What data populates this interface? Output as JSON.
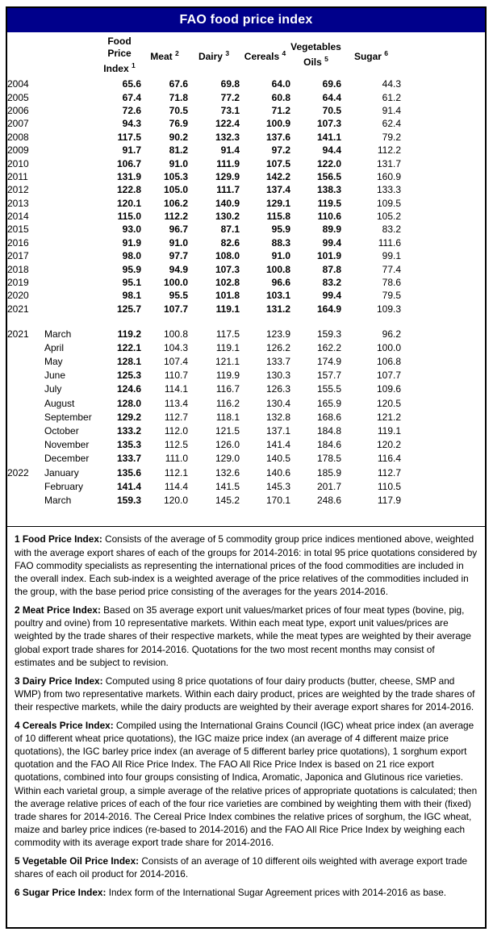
{
  "title": "FAO food price index",
  "colors": {
    "header_bg": "#00008B",
    "header_text": "#FFFFFF",
    "border": "#000000",
    "text": "#000000"
  },
  "table": {
    "columns": [
      {
        "id": "food-price-index",
        "line1": "Food Price",
        "word": "Index",
        "sup": "1"
      },
      {
        "id": "meat",
        "line1": "",
        "word": "Meat",
        "sup": "2"
      },
      {
        "id": "dairy",
        "line1": "",
        "word": "Dairy",
        "sup": "3"
      },
      {
        "id": "cereals",
        "line1": "",
        "word": "Cereals",
        "sup": "4"
      },
      {
        "id": "vegetables-oils",
        "line1": "Vegetables",
        "word": "Oils",
        "sup": "5"
      },
      {
        "id": "sugar",
        "line1": "",
        "word": "Sugar",
        "sup": "6"
      }
    ],
    "annual_rows": [
      {
        "year": "2004",
        "values": [
          "65.6",
          "67.6",
          "69.8",
          "64.0",
          "69.6",
          "44.3"
        ]
      },
      {
        "year": "2005",
        "values": [
          "67.4",
          "71.8",
          "77.2",
          "60.8",
          "64.4",
          "61.2"
        ]
      },
      {
        "year": "2006",
        "values": [
          "72.6",
          "70.5",
          "73.1",
          "71.2",
          "70.5",
          "91.4"
        ]
      },
      {
        "year": "2007",
        "values": [
          "94.3",
          "76.9",
          "122.4",
          "100.9",
          "107.3",
          "62.4"
        ]
      },
      {
        "year": "2008",
        "values": [
          "117.5",
          "90.2",
          "132.3",
          "137.6",
          "141.1",
          "79.2"
        ]
      },
      {
        "year": "2009",
        "values": [
          "91.7",
          "81.2",
          "91.4",
          "97.2",
          "94.4",
          "112.2"
        ]
      },
      {
        "year": "2010",
        "values": [
          "106.7",
          "91.0",
          "111.9",
          "107.5",
          "122.0",
          "131.7"
        ]
      },
      {
        "year": "2011",
        "values": [
          "131.9",
          "105.3",
          "129.9",
          "142.2",
          "156.5",
          "160.9"
        ]
      },
      {
        "year": "2012",
        "values": [
          "122.8",
          "105.0",
          "111.7",
          "137.4",
          "138.3",
          "133.3"
        ]
      },
      {
        "year": "2013",
        "values": [
          "120.1",
          "106.2",
          "140.9",
          "129.1",
          "119.5",
          "109.5"
        ]
      },
      {
        "year": "2014",
        "values": [
          "115.0",
          "112.2",
          "130.2",
          "115.8",
          "110.6",
          "105.2"
        ]
      },
      {
        "year": "2015",
        "values": [
          "93.0",
          "96.7",
          "87.1",
          "95.9",
          "89.9",
          "83.2"
        ]
      },
      {
        "year": "2016",
        "values": [
          "91.9",
          "91.0",
          "82.6",
          "88.3",
          "99.4",
          "111.6"
        ]
      },
      {
        "year": "2017",
        "values": [
          "98.0",
          "97.7",
          "108.0",
          "91.0",
          "101.9",
          "99.1"
        ]
      },
      {
        "year": "2018",
        "values": [
          "95.9",
          "94.9",
          "107.3",
          "100.8",
          "87.8",
          "77.4"
        ]
      },
      {
        "year": "2019",
        "values": [
          "95.1",
          "100.0",
          "102.8",
          "96.6",
          "83.2",
          "78.6"
        ]
      },
      {
        "year": "2020",
        "values": [
          "98.1",
          "95.5",
          "101.8",
          "103.1",
          "99.4",
          "79.5"
        ]
      },
      {
        "year": "2021",
        "values": [
          "125.7",
          "107.7",
          "119.1",
          "131.2",
          "164.9",
          "109.3"
        ]
      }
    ],
    "monthly_rows": [
      {
        "year": "2021",
        "month": "March",
        "values": [
          "119.2",
          "100.8",
          "117.5",
          "123.9",
          "159.3",
          "96.2"
        ]
      },
      {
        "year": "",
        "month": "April",
        "values": [
          "122.1",
          "104.3",
          "119.1",
          "126.2",
          "162.2",
          "100.0"
        ]
      },
      {
        "year": "",
        "month": "May",
        "values": [
          "128.1",
          "107.4",
          "121.1",
          "133.7",
          "174.9",
          "106.8"
        ]
      },
      {
        "year": "",
        "month": "June",
        "values": [
          "125.3",
          "110.7",
          "119.9",
          "130.3",
          "157.7",
          "107.7"
        ]
      },
      {
        "year": "",
        "month": "July",
        "values": [
          "124.6",
          "114.1",
          "116.7",
          "126.3",
          "155.5",
          "109.6"
        ]
      },
      {
        "year": "",
        "month": "August",
        "values": [
          "128.0",
          "113.4",
          "116.2",
          "130.4",
          "165.9",
          "120.5"
        ]
      },
      {
        "year": "",
        "month": "September",
        "values": [
          "129.2",
          "112.7",
          "118.1",
          "132.8",
          "168.6",
          "121.2"
        ]
      },
      {
        "year": "",
        "month": "October",
        "values": [
          "133.2",
          "112.0",
          "121.5",
          "137.1",
          "184.8",
          "119.1"
        ]
      },
      {
        "year": "",
        "month": "November",
        "values": [
          "135.3",
          "112.5",
          "126.0",
          "141.4",
          "184.6",
          "120.2"
        ]
      },
      {
        "year": "",
        "month": "December",
        "values": [
          "133.7",
          "111.0",
          "129.0",
          "140.5",
          "178.5",
          "116.4"
        ]
      },
      {
        "year": "2022",
        "month": "January",
        "values": [
          "135.6",
          "112.1",
          "132.6",
          "140.6",
          "185.9",
          "112.7"
        ]
      },
      {
        "year": "",
        "month": "February",
        "values": [
          "141.4",
          "114.4",
          "141.5",
          "145.3",
          "201.7",
          "110.5"
        ]
      },
      {
        "year": "",
        "month": "March",
        "values": [
          "159.3",
          "120.0",
          "145.2",
          "170.1",
          "248.6",
          "117.9"
        ]
      }
    ]
  },
  "footnotes": [
    {
      "label": "1 Food Price Index:",
      "text": "Consists of the average of 5 commodity group price indices mentioned above, weighted with the average export shares of each of the groups for 2014-2016: in total 95 price quotations considered by FAO commodity specialists as representing the international prices of the food commodities are included in the overall index. Each sub-index is a weighted average of the price relatives of the commodities included in the group, with the base period price consisting of the averages for the years 2014-2016."
    },
    {
      "label": "2 Meat Price Index:",
      "text": "Based on 35 average export unit values/market prices of four meat types (bovine, pig, poultry and ovine) from 10 representative markets. Within each meat type, export unit values/prices are weighted by the trade shares of their respective markets, while the meat types are weighted by their average global export trade shares for 2014-2016. Quotations for the two most recent months may consist of estimates and be subject to revision."
    },
    {
      "label": "3 Dairy Price Index:",
      "text": "Computed using 8 price quotations of four dairy products (butter, cheese, SMP and WMP) from two representative markets. Within each dairy product, prices are weighted by the trade shares of their respective markets, while the dairy products are weighted by their average export shares for 2014-2016."
    },
    {
      "label": "4 Cereals Price Index:",
      "text": "Compiled using the International Grains Council (IGC) wheat price index (an average of 10 different wheat price quotations), the IGC maize price index (an average of 4 different maize price quotations), the IGC barley price index (an average of 5 different barley price quotations), 1 sorghum export quotation and the FAO All Rice Price Index. The FAO All Rice Price Index is based on 21 rice export quotations, combined into four groups consisting of Indica, Aromatic, Japonica and Glutinous rice varieties. Within each varietal group, a simple average of the relative prices of appropriate quotations is calculated; then the average relative prices of each of the four rice varieties are combined by weighting them with their (fixed) trade shares for 2014-2016. The Cereal Price Index combines the relative prices of sorghum, the IGC wheat, maize and barley price indices (re-based to 2014-2016) and the FAO All Rice Price Index by weighing each commodity with its average export trade share for 2014-2016."
    },
    {
      "label": "5 Vegetable Oil Price Index:",
      "text": "Consists of an average of 10 different oils weighted with average export trade shares of each oil product for 2014-2016."
    },
    {
      "label": "6 Sugar Price Index:",
      "text": "Index form of the International Sugar Agreement prices with 2014-2016 as base."
    }
  ]
}
